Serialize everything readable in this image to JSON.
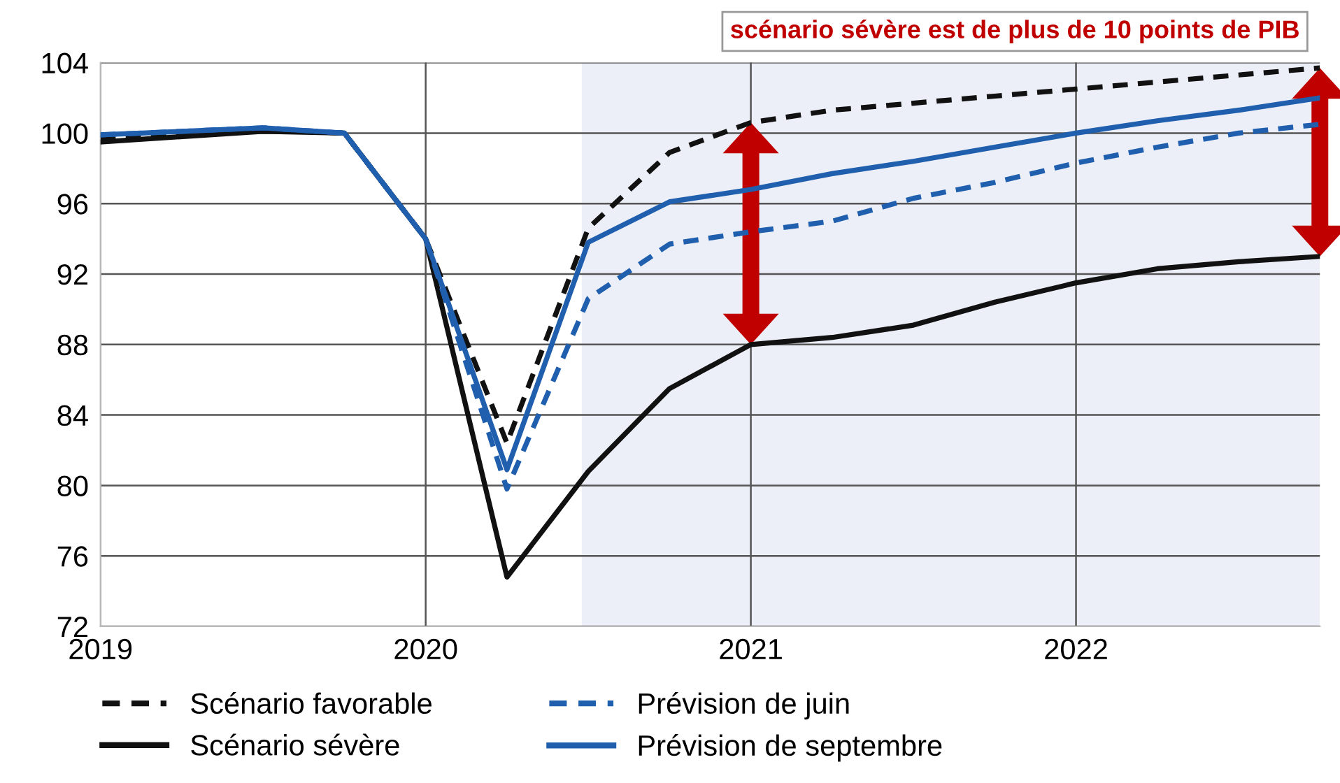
{
  "chart_data": {
    "type": "line",
    "x": [
      2019.0,
      2019.5,
      2019.75,
      2020.0,
      2020.25,
      2020.5,
      2020.75,
      2021.0,
      2021.25,
      2021.5,
      2021.75,
      2022.0,
      2022.25,
      2022.5,
      2022.75
    ],
    "series": [
      {
        "name": "Scénario favorable",
        "color": "#111111",
        "line_style": "dashed",
        "values": [
          99.7,
          100.2,
          100.0,
          94.0,
          82.4,
          94.6,
          98.9,
          100.6,
          101.3,
          101.7,
          102.1,
          102.5,
          102.9,
          103.3,
          103.7
        ]
      },
      {
        "name": "Scénario sévère",
        "color": "#111111",
        "line_style": "solid",
        "values": [
          99.5,
          100.1,
          100.0,
          94.0,
          74.8,
          80.8,
          85.5,
          88.0,
          88.4,
          89.1,
          90.4,
          91.5,
          92.3,
          92.7,
          93.0
        ]
      },
      {
        "name": "Prévision de juin",
        "color": "#1f5fae",
        "line_style": "dashed",
        "values": [
          99.9,
          100.3,
          100.0,
          94.0,
          79.8,
          90.6,
          93.7,
          94.4,
          95.0,
          96.3,
          97.2,
          98.3,
          99.2,
          100.0,
          100.5
        ]
      },
      {
        "name": "Prévision de septembre",
        "color": "#1f5fae",
        "line_style": "solid",
        "values": [
          99.9,
          100.3,
          100.0,
          94.0,
          80.9,
          93.8,
          96.1,
          96.8,
          97.7,
          98.4,
          99.2,
          100.0,
          100.7,
          101.3,
          102.0
        ]
      }
    ],
    "xlim": [
      2019.0,
      2022.75
    ],
    "xticks": [
      2019,
      2020,
      2021,
      2022
    ],
    "ylim": [
      72,
      104
    ],
    "yticks": [
      72,
      76,
      80,
      84,
      88,
      92,
      96,
      100,
      104
    ],
    "grid": true,
    "legend": "bottom",
    "marker": "none",
    "bands": [
      {
        "axis": "x",
        "from": 2020.48,
        "to": 2022.75,
        "color": "#eceff7"
      }
    ],
    "annotations": [
      "scénario sévère est de plus de 10 points de PIB"
    ]
  }
}
